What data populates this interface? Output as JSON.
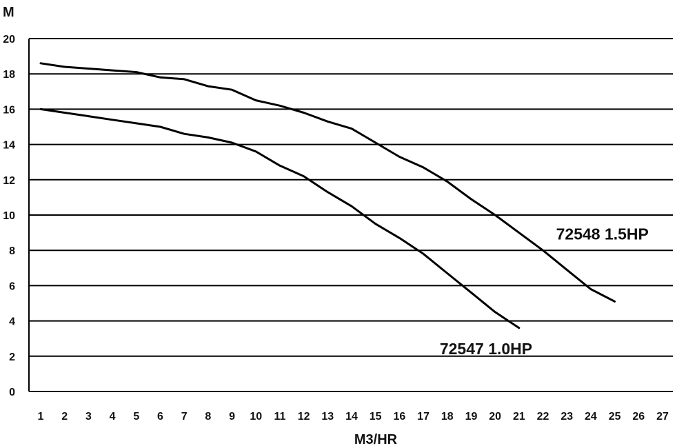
{
  "chart_data": {
    "type": "line",
    "title": "",
    "xlabel": "M3/HR",
    "ylabel": "M",
    "xlim": [
      1,
      27
    ],
    "ylim": [
      0,
      20
    ],
    "x_ticks": [
      "1",
      "2",
      "3",
      "4",
      "5",
      "6",
      "7",
      "8",
      "9",
      "10",
      "11",
      "12",
      "13",
      "14",
      "15",
      "16",
      "17",
      "18",
      "19",
      "20",
      "21",
      "22",
      "23",
      "24",
      "25",
      "26",
      "27"
    ],
    "y_ticks": [
      "0",
      "2",
      "4",
      "6",
      "8",
      "10",
      "12",
      "14",
      "16",
      "18",
      "20"
    ],
    "grid": "horizontal",
    "series": [
      {
        "name": "72548 1.5HP",
        "x": [
          1,
          2,
          3,
          4,
          5,
          6,
          7,
          8,
          9,
          10,
          11,
          12,
          13,
          14,
          15,
          16,
          17,
          18,
          19,
          20,
          21,
          22,
          23,
          24,
          25
        ],
        "y": [
          18.6,
          18.4,
          18.3,
          18.2,
          18.1,
          17.8,
          17.7,
          17.3,
          17.1,
          16.5,
          16.2,
          15.8,
          15.3,
          14.9,
          14.1,
          13.3,
          12.7,
          11.9,
          10.9,
          10.0,
          9.0,
          8.0,
          6.9,
          5.8,
          5.1
        ],
        "label_position": "right"
      },
      {
        "name": "72547 1.0HP",
        "x": [
          1,
          2,
          3,
          4,
          5,
          6,
          7,
          8,
          9,
          10,
          11,
          12,
          13,
          14,
          15,
          16,
          17,
          18,
          19,
          20,
          21
        ],
        "y": [
          16.0,
          15.8,
          15.6,
          15.4,
          15.2,
          15.0,
          14.6,
          14.4,
          14.1,
          13.6,
          12.8,
          12.2,
          11.3,
          10.5,
          9.5,
          8.7,
          7.8,
          6.7,
          5.6,
          4.5,
          3.6
        ],
        "label_position": "bottom-right"
      }
    ]
  }
}
